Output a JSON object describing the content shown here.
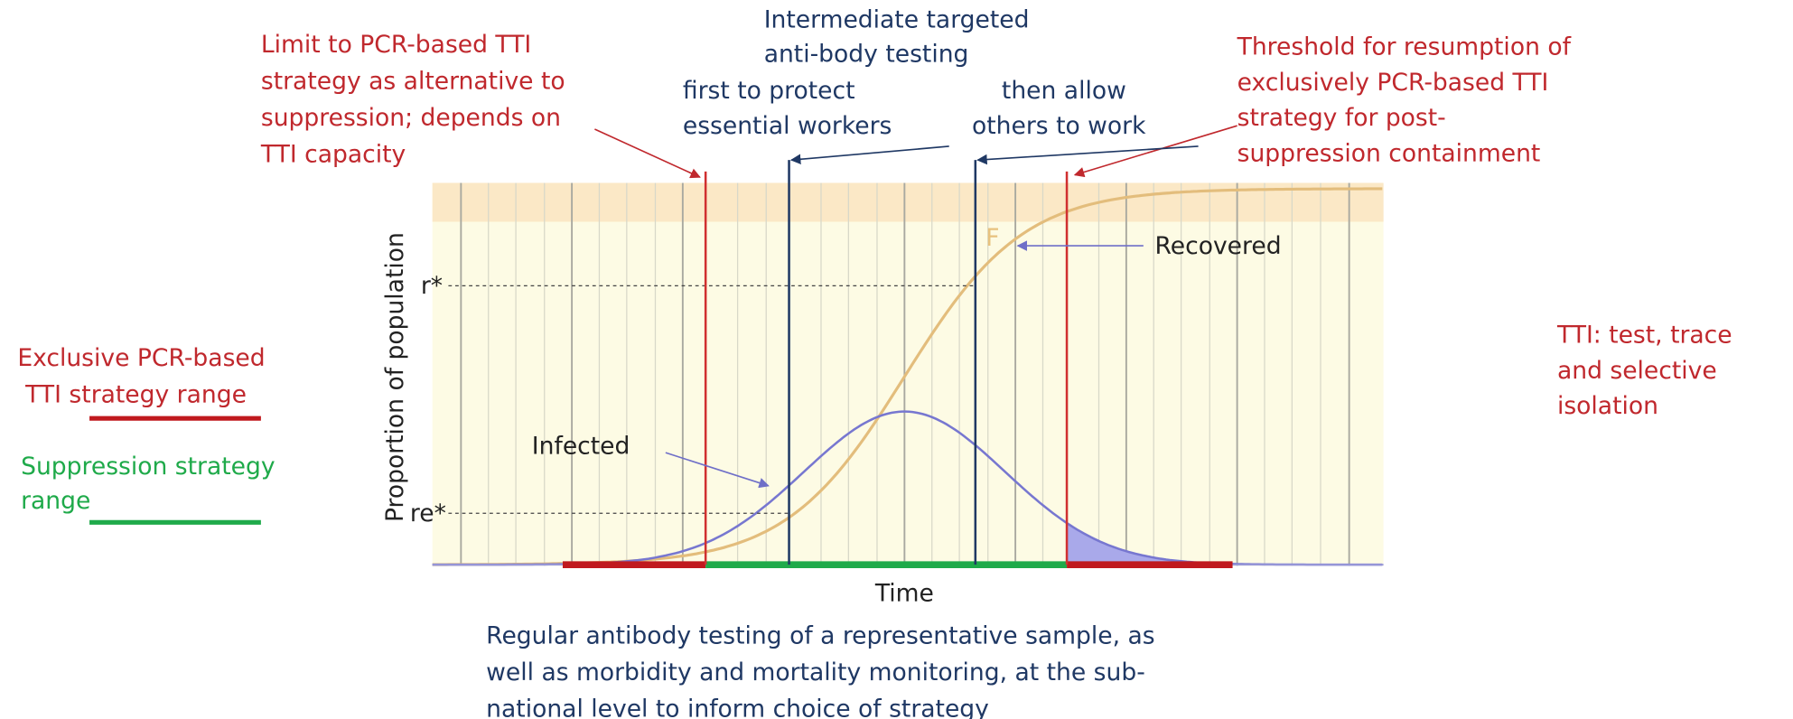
{
  "limit_note": [
    "Limit to PCR-based TTI",
    "strategy as alternative to",
    "suppression; depends on",
    "TTI capacity"
  ],
  "intermediate_note": [
    "Intermediate targeted",
    "anti-body testing"
  ],
  "first_note": [
    "first to protect",
    "essential workers"
  ],
  "then_note": [
    "then allow",
    "others to work"
  ],
  "threshold_note": [
    "Threshold for resumption of",
    "exclusively PCR-based TTI",
    "strategy for post-",
    "suppression containment"
  ],
  "legend": {
    "pcr": [
      "Exclusive PCR-based",
      "TTI strategy range"
    ],
    "suppression": [
      "Suppression strategy",
      "range"
    ]
  },
  "tti_note": [
    "TTI: test, trace",
    "and selective",
    "isolation"
  ],
  "plot": {
    "y_label": "Proportion of population",
    "x_label": "Time",
    "r_star": "r*",
    "re_star": "re*",
    "f_label": "F",
    "recovered": "Recovered",
    "infected": "Infected"
  },
  "bottom_note": [
    "Regular antibody testing of a representative sample, as",
    "well as morbidity and mortality monitoring, at the sub-",
    "national level to inform choice of strategy"
  ]
}
